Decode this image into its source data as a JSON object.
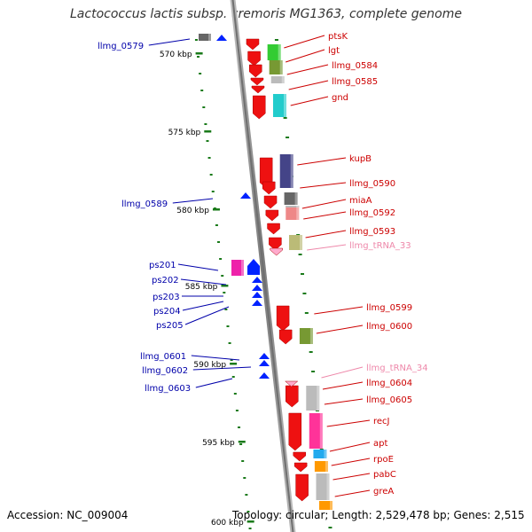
{
  "title": "Lactococcus lactis subsp. cremoris MG1363, complete genome",
  "accession": "Accession: NC_009004",
  "summary": "Topology: circular; Length: 2,529,478 bp; Genes: 2,515",
  "colors": {
    "backbone": "#8c8c8c",
    "tick": "#1a7a1a",
    "tick_label": "#000000",
    "right_label": "#cc0000",
    "left_label": "#0000aa",
    "trna_label": "#ee88aa"
  },
  "kbp_ticks": [
    "570 kbp",
    "575 kbp",
    "580 kbp",
    "585 kbp",
    "590 kbp",
    "595 kbp",
    "600 kbp"
  ],
  "right_labels": [
    "ptsK",
    "lgt",
    "llmg_0584",
    "llmg_0585",
    "gnd",
    "kupB",
    "llmg_0590",
    "miaA",
    "llmg_0592",
    "llmg_0593",
    "llmg_tRNA_33",
    "llmg_0599",
    "llmg_0600",
    "llmg_tRNA_34",
    "llmg_0604",
    "llmg_0605",
    "recJ",
    "apt",
    "rpoE",
    "pabC",
    "greA"
  ],
  "left_labels": [
    "llmg_0579",
    "llmg_0589",
    "ps201",
    "ps202",
    "ps203",
    "ps204",
    "ps205",
    "llmg_0601",
    "llmg_0602",
    "llmg_0603"
  ],
  "gene_colors": {
    "ptsK": "#33cc33",
    "lgt": "#779933",
    "llmg_0584": "#bbbbbb",
    "gnd": "#22cccc",
    "kupB": "#444488",
    "llmg_0590": "#666666",
    "miaA": "#ee8888",
    "llmg_0592": "#bbbbbb",
    "llmg_0593": "#bbbb77",
    "llmg_0600": "#779933",
    "llmg_0605": "#bbbbbb",
    "recJ": "#ff3399",
    "apt": "#22aaee",
    "rpoE": "#ff9900",
    "pabC": "#bbbbbb",
    "greA": "#ff9900"
  }
}
